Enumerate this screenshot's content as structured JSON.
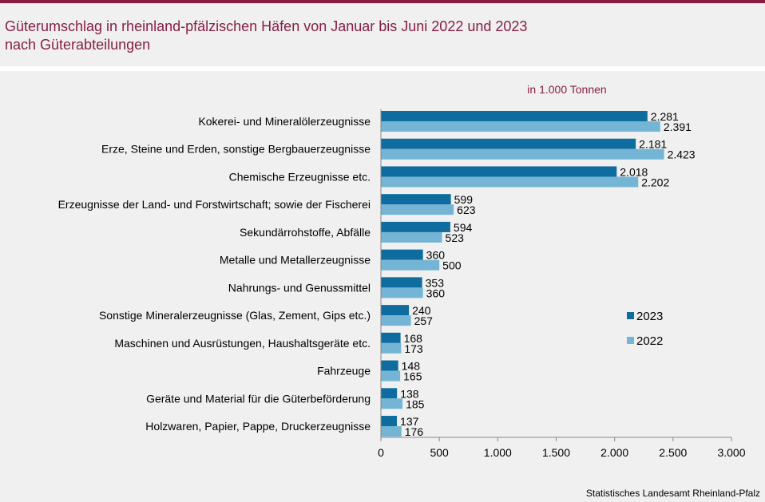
{
  "title": {
    "line1": "Güterumschlag in rheinland-pfälzischen Häfen von Januar bis Juni 2022 und 2023",
    "line2": "nach Güterabteilungen"
  },
  "source": "Statistisches Landesamt Rheinland-Pfalz",
  "colors": {
    "accent": "#8c1d40",
    "s2023": "#0e6d9e",
    "s2022": "#74b5d5",
    "background": "#f0f0f0"
  },
  "chart_data": {
    "type": "bar",
    "orientation": "horizontal",
    "unit_label": "in 1.000 Tonnen",
    "categories": [
      "Kokerei- und Mineralölerzeugnisse",
      "Erze, Steine und Erden, sonstige Bergbauerzeugnisse",
      "Chemische Erzeugnisse etc.",
      "Erzeugnisse der Land- und Forstwirtschaft; sowie der Fischerei",
      "Sekundärrohstoffe, Abfälle",
      "Metalle und Metallerzeugnisse",
      "Nahrungs- und Genussmittel",
      "Sonstige Mineralerzeugnisse (Glas, Zement, Gips etc.)",
      "Maschinen und Ausrüstungen, Haushaltsgeräte etc.",
      "Fahrzeuge",
      "Geräte und Material für die Güterbeförderung",
      "Holzwaren, Papier, Pappe, Druckerzeugnisse"
    ],
    "series": [
      {
        "name": "2023",
        "color": "#0e6d9e",
        "values": [
          2281,
          2181,
          2018,
          599,
          594,
          360,
          353,
          240,
          168,
          148,
          138,
          137
        ],
        "labels": [
          "2.281",
          "2.181",
          "2.018",
          "599",
          "594",
          "360",
          "353",
          "240",
          "168",
          "148",
          "138",
          "137"
        ]
      },
      {
        "name": "2022",
        "color": "#74b5d5",
        "values": [
          2391,
          2423,
          2202,
          623,
          523,
          500,
          360,
          257,
          173,
          165,
          185,
          176
        ],
        "labels": [
          "2.391",
          "2.423",
          "2.202",
          "623",
          "523",
          "500",
          "360",
          "257",
          "173",
          "165",
          "185",
          "176"
        ]
      }
    ],
    "xlim": [
      0,
      3000
    ],
    "xticks": [
      0,
      500,
      1000,
      1500,
      2000,
      2500,
      3000
    ],
    "xtick_labels": [
      "0",
      "500",
      "1.000",
      "1.500",
      "2.000",
      "2.500",
      "3.000"
    ],
    "grid": false,
    "legend": {
      "placement": "right",
      "entries": [
        "2023",
        "2022"
      ]
    }
  }
}
